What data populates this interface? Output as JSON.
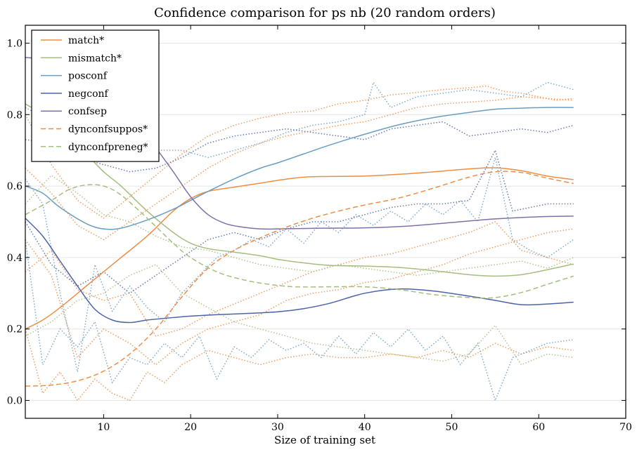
{
  "chart_data": {
    "type": "line",
    "title": "Confidence comparison for ps nb (20 random orders)",
    "xlabel": "Size of training set",
    "ylabel": "",
    "xlim": [
      1,
      70
    ],
    "ylim": [
      -0.05,
      1.05
    ],
    "xticks": [
      10,
      20,
      30,
      40,
      50,
      60,
      70
    ],
    "yticks": [
      0.0,
      0.2,
      0.4,
      0.6,
      0.8,
      1.0
    ],
    "ytick_labels": [
      "0.0",
      "0.2",
      "0.4",
      "0.6",
      "0.8",
      "1.0"
    ],
    "grid": "horizontal",
    "legend_position": "upper-left",
    "series": [
      {
        "name": "match*",
        "color": "#ee8d44",
        "style": "solid",
        "x": [
          1,
          3,
          5,
          8,
          10,
          12,
          15,
          18,
          20,
          22,
          25,
          28,
          30,
          33,
          36,
          40,
          44,
          48,
          52,
          55,
          58,
          61,
          64
        ],
        "y": [
          0.2,
          0.225,
          0.26,
          0.32,
          0.36,
          0.4,
          0.46,
          0.53,
          0.565,
          0.585,
          0.597,
          0.608,
          0.616,
          0.625,
          0.627,
          0.628,
          0.633,
          0.64,
          0.648,
          0.651,
          0.643,
          0.628,
          0.618
        ]
      },
      {
        "name": "mismatch*",
        "color": "#a5bd7e",
        "style": "solid",
        "x": [
          1,
          3,
          5,
          8,
          10,
          12,
          15,
          18,
          20,
          22,
          25,
          28,
          30,
          33,
          36,
          40,
          44,
          48,
          52,
          55,
          58,
          61,
          64
        ],
        "y": [
          0.83,
          0.8,
          0.76,
          0.69,
          0.64,
          0.6,
          0.53,
          0.47,
          0.44,
          0.425,
          0.415,
          0.405,
          0.395,
          0.385,
          0.378,
          0.376,
          0.372,
          0.363,
          0.352,
          0.348,
          0.352,
          0.366,
          0.382
        ]
      },
      {
        "name": "posconf",
        "color": "#6b9dc0",
        "style": "solid",
        "x": [
          1,
          3,
          5,
          8,
          10,
          12,
          15,
          18,
          20,
          22,
          25,
          28,
          30,
          33,
          36,
          40,
          44,
          48,
          52,
          55,
          58,
          61,
          64
        ],
        "y": [
          0.6,
          0.58,
          0.54,
          0.495,
          0.48,
          0.482,
          0.505,
          0.535,
          0.56,
          0.585,
          0.62,
          0.65,
          0.665,
          0.69,
          0.715,
          0.745,
          0.772,
          0.792,
          0.806,
          0.815,
          0.818,
          0.82,
          0.82
        ]
      },
      {
        "name": "negconf",
        "color": "#4c63aa",
        "style": "solid",
        "x": [
          1,
          3,
          5,
          7,
          9,
          11,
          13,
          15,
          18,
          20,
          23,
          26,
          30,
          33,
          36,
          40,
          44,
          48,
          52,
          55,
          58,
          61,
          64
        ],
        "y": [
          0.51,
          0.46,
          0.39,
          0.32,
          0.255,
          0.225,
          0.218,
          0.225,
          0.232,
          0.236,
          0.24,
          0.243,
          0.248,
          0.257,
          0.272,
          0.3,
          0.312,
          0.306,
          0.292,
          0.28,
          0.268,
          0.27,
          0.275
        ]
      },
      {
        "name": "confsep",
        "color": "#8070aa",
        "style": "solid",
        "x": [
          1,
          5,
          8,
          10,
          13,
          15,
          18,
          20,
          22,
          24,
          26,
          28,
          30,
          35,
          40,
          45,
          50,
          55,
          60,
          64
        ],
        "y": [
          0.96,
          0.95,
          0.92,
          0.88,
          0.8,
          0.74,
          0.64,
          0.57,
          0.52,
          0.495,
          0.485,
          0.48,
          0.48,
          0.482,
          0.483,
          0.488,
          0.498,
          0.508,
          0.514,
          0.516
        ]
      },
      {
        "name": "dynconfsuppos*",
        "color": "#ee8d44",
        "style": "dashed",
        "x": [
          1,
          4,
          7,
          10,
          13,
          16,
          19,
          22,
          25,
          28,
          31,
          34,
          37,
          40,
          44,
          48,
          52,
          55,
          58,
          61,
          64
        ],
        "y": [
          0.04,
          0.043,
          0.055,
          0.082,
          0.13,
          0.2,
          0.29,
          0.37,
          0.42,
          0.455,
          0.485,
          0.51,
          0.53,
          0.547,
          0.567,
          0.595,
          0.625,
          0.64,
          0.638,
          0.622,
          0.607
        ]
      },
      {
        "name": "dynconfpreneg*",
        "color": "#a5bd7e",
        "style": "dashed",
        "x": [
          1,
          4,
          6,
          8,
          10,
          12,
          15,
          18,
          20,
          23,
          26,
          29,
          32,
          36,
          40,
          44,
          48,
          52,
          55,
          58,
          61,
          64
        ],
        "y": [
          0.52,
          0.56,
          0.59,
          0.603,
          0.6,
          0.575,
          0.51,
          0.44,
          0.4,
          0.36,
          0.338,
          0.325,
          0.318,
          0.318,
          0.318,
          0.31,
          0.296,
          0.288,
          0.288,
          0.302,
          0.325,
          0.348
        ]
      }
    ],
    "background_series": [
      {
        "color": "#ee8d44",
        "style": "dotted",
        "x": [
          1,
          4,
          7,
          10,
          13,
          16,
          19,
          22,
          25,
          28,
          31,
          34,
          37,
          40,
          43,
          46,
          49,
          52,
          54,
          56,
          58,
          60,
          62,
          64
        ],
        "y": [
          0.8,
          0.66,
          0.56,
          0.51,
          0.57,
          0.63,
          0.69,
          0.74,
          0.77,
          0.79,
          0.805,
          0.81,
          0.83,
          0.84,
          0.855,
          0.862,
          0.87,
          0.875,
          0.88,
          0.865,
          0.86,
          0.85,
          0.84,
          0.845
        ]
      },
      {
        "color": "#ee8d44",
        "style": "dotted",
        "x": [
          1,
          4,
          7,
          10,
          13,
          16,
          19,
          22,
          25,
          28,
          31,
          34,
          37,
          40,
          43,
          46,
          49,
          52,
          55,
          58,
          61,
          64
        ],
        "y": [
          0.65,
          0.58,
          0.49,
          0.45,
          0.5,
          0.55,
          0.6,
          0.65,
          0.69,
          0.72,
          0.74,
          0.755,
          0.77,
          0.78,
          0.8,
          0.82,
          0.83,
          0.835,
          0.84,
          0.85,
          0.845,
          0.84
        ]
      },
      {
        "color": "#ee8d44",
        "style": "dotted",
        "x": [
          1,
          3,
          5,
          7,
          9,
          11,
          13,
          15,
          17,
          19,
          22,
          25,
          28,
          31,
          34,
          37,
          40,
          43,
          46,
          49,
          52,
          55,
          58,
          61,
          64
        ],
        "y": [
          0.2,
          0.02,
          0.08,
          0.0,
          0.06,
          0.02,
          0.0,
          0.08,
          0.05,
          0.1,
          0.14,
          0.12,
          0.1,
          0.12,
          0.13,
          0.12,
          0.12,
          0.13,
          0.12,
          0.14,
          0.12,
          0.16,
          0.13,
          0.15,
          0.14
        ]
      },
      {
        "color": "#ee8d44",
        "style": "dotted",
        "x": [
          1,
          4,
          7,
          10,
          13,
          16,
          19,
          22,
          25,
          28,
          31,
          34,
          37,
          40,
          43,
          46,
          49,
          52,
          55,
          58,
          61,
          64
        ],
        "y": [
          0.36,
          0.42,
          0.31,
          0.28,
          0.3,
          0.18,
          0.2,
          0.24,
          0.27,
          0.3,
          0.33,
          0.36,
          0.38,
          0.4,
          0.41,
          0.43,
          0.45,
          0.47,
          0.5,
          0.42,
          0.4,
          0.38
        ]
      },
      {
        "color": "#ee8d44",
        "style": "dotted",
        "x": [
          1,
          4,
          7,
          10,
          13,
          16,
          19,
          22,
          25,
          28,
          31,
          34,
          37,
          40,
          43,
          46,
          49,
          52,
          55,
          58,
          61,
          64
        ],
        "y": [
          0.45,
          0.35,
          0.12,
          0.2,
          0.16,
          0.1,
          0.16,
          0.2,
          0.22,
          0.24,
          0.28,
          0.3,
          0.31,
          0.33,
          0.34,
          0.36,
          0.38,
          0.41,
          0.43,
          0.45,
          0.47,
          0.48
        ]
      },
      {
        "color": "#6b9dc0",
        "style": "dotted",
        "x": [
          1,
          3,
          5,
          7,
          9,
          11,
          13,
          15,
          17,
          19,
          21,
          23,
          25,
          27,
          29,
          31,
          33,
          35,
          37,
          39,
          41,
          43,
          45,
          47,
          49,
          51,
          53,
          55,
          57,
          59,
          61,
          64
        ],
        "y": [
          0.62,
          0.55,
          0.3,
          0.08,
          0.38,
          0.25,
          0.32,
          0.26,
          0.22,
          0.3,
          0.35,
          0.4,
          0.42,
          0.45,
          0.43,
          0.48,
          0.44,
          0.5,
          0.47,
          0.52,
          0.49,
          0.53,
          0.5,
          0.55,
          0.52,
          0.56,
          0.5,
          0.68,
          0.45,
          0.42,
          0.4,
          0.45
        ]
      },
      {
        "color": "#6b9dc0",
        "style": "dotted",
        "x": [
          1,
          3,
          5,
          7,
          9,
          11,
          13,
          15,
          17,
          19,
          21,
          23,
          25,
          27,
          29,
          31,
          33,
          35,
          37,
          39,
          41,
          43,
          45,
          47,
          49,
          51,
          53,
          55,
          57,
          59,
          61,
          64
        ],
        "y": [
          0.45,
          0.1,
          0.2,
          0.15,
          0.22,
          0.05,
          0.12,
          0.1,
          0.16,
          0.12,
          0.18,
          0.06,
          0.15,
          0.12,
          0.17,
          0.14,
          0.16,
          0.12,
          0.18,
          0.13,
          0.19,
          0.15,
          0.2,
          0.14,
          0.18,
          0.1,
          0.16,
          0.0,
          0.12,
          0.14,
          0.16,
          0.17
        ]
      },
      {
        "color": "#6b9dc0",
        "style": "dotted",
        "x": [
          1,
          4,
          7,
          10,
          13,
          16,
          19,
          22,
          25,
          28,
          31,
          34,
          37,
          40,
          41,
          43,
          46,
          49,
          52,
          55,
          58,
          61,
          64
        ],
        "y": [
          0.82,
          0.78,
          0.7,
          0.74,
          0.72,
          0.7,
          0.7,
          0.68,
          0.7,
          0.72,
          0.75,
          0.77,
          0.78,
          0.8,
          0.89,
          0.82,
          0.85,
          0.86,
          0.87,
          0.86,
          0.85,
          0.89,
          0.87
        ]
      },
      {
        "color": "#4c63aa",
        "style": "dotted",
        "x": [
          1,
          4,
          7,
          10,
          13,
          16,
          19,
          22,
          25,
          28,
          31,
          34,
          37,
          40,
          43,
          46,
          49,
          52,
          55,
          57,
          59,
          61,
          64
        ],
        "y": [
          0.5,
          0.38,
          0.32,
          0.36,
          0.3,
          0.35,
          0.4,
          0.45,
          0.47,
          0.45,
          0.48,
          0.5,
          0.5,
          0.52,
          0.54,
          0.55,
          0.55,
          0.56,
          0.7,
          0.53,
          0.54,
          0.55,
          0.55
        ]
      },
      {
        "color": "#4c63aa",
        "style": "dotted",
        "x": [
          1,
          4,
          7,
          10,
          13,
          16,
          19,
          22,
          25,
          28,
          31,
          34,
          37,
          40,
          43,
          46,
          49,
          52,
          55,
          58,
          61,
          64
        ],
        "y": [
          0.73,
          0.72,
          0.68,
          0.66,
          0.64,
          0.65,
          0.68,
          0.72,
          0.74,
          0.75,
          0.76,
          0.75,
          0.74,
          0.73,
          0.76,
          0.77,
          0.78,
          0.74,
          0.75,
          0.76,
          0.75,
          0.77
        ]
      },
      {
        "color": "#a5bd7e",
        "style": "dotted",
        "x": [
          1,
          4,
          7,
          10,
          13,
          16,
          19,
          22,
          25,
          28,
          31,
          34,
          37,
          40,
          43,
          46,
          49,
          52,
          55,
          58,
          61,
          64
        ],
        "y": [
          0.55,
          0.63,
          0.58,
          0.52,
          0.5,
          0.46,
          0.43,
          0.42,
          0.4,
          0.38,
          0.37,
          0.36,
          0.38,
          0.37,
          0.36,
          0.35,
          0.36,
          0.37,
          0.38,
          0.39,
          0.37,
          0.4
        ]
      },
      {
        "color": "#a5bd7e",
        "style": "dotted",
        "x": [
          1,
          4,
          7,
          10,
          13,
          16,
          19,
          22,
          25,
          28,
          31,
          34,
          37,
          40,
          43,
          46,
          49,
          52,
          55,
          58,
          61,
          64
        ],
        "y": [
          0.18,
          0.22,
          0.28,
          0.3,
          0.35,
          0.38,
          0.3,
          0.26,
          0.22,
          0.2,
          0.18,
          0.16,
          0.15,
          0.14,
          0.13,
          0.12,
          0.11,
          0.13,
          0.21,
          0.1,
          0.13,
          0.12
        ]
      }
    ]
  }
}
